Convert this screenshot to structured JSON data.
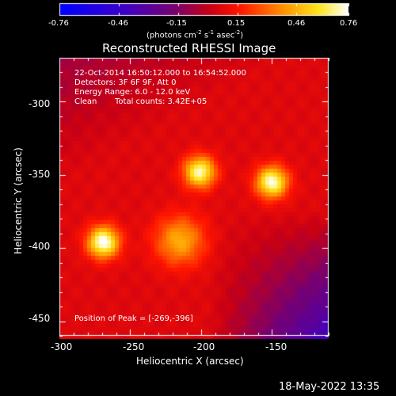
{
  "colorbar": {
    "ticks": [
      "-0.76",
      "-0.46",
      "-0.15",
      "0.15",
      "0.46",
      "0.76"
    ],
    "units": "(photons cm",
    "units_exp1": "-2",
    "units_mid": " s",
    "units_exp2": "-1",
    "units_mid2": " asec",
    "units_exp3": "-2",
    "units_end": ")"
  },
  "plot": {
    "title": "Reconstructed RHESSI Image",
    "xlabel": "Heliocentric X (arcsec)",
    "ylabel": "Heliocentric Y (arcsec)",
    "xticks": [
      "-300",
      "-250",
      "-200",
      "-150"
    ],
    "yticks": [
      "-300",
      "-350",
      "-400",
      "-450"
    ],
    "xrange": [
      -300,
      -110
    ],
    "yrange": [
      -460,
      -270
    ],
    "annotations": {
      "time": "22-Oct-2014 16:50:12.000 to 16:54:52.000",
      "detectors": "Detectors: 3F 6F 9F, Att 0",
      "energy": "Energy Range: 6.0 - 12.0 keV",
      "clean": "Clean",
      "counts": "Total counts: 3.42E+05",
      "peak": "Position of Peak = [-269,-396]"
    },
    "sources": [
      {
        "x": -269,
        "y": -396,
        "peak": 1.0
      },
      {
        "x": -150,
        "y": -355,
        "peak": 0.95
      },
      {
        "x": -201,
        "y": -348,
        "peak": 0.9
      },
      {
        "x": -215,
        "y": -395,
        "peak": 0.55
      }
    ]
  },
  "footer": {
    "date": "18-May-2022 13:35"
  }
}
